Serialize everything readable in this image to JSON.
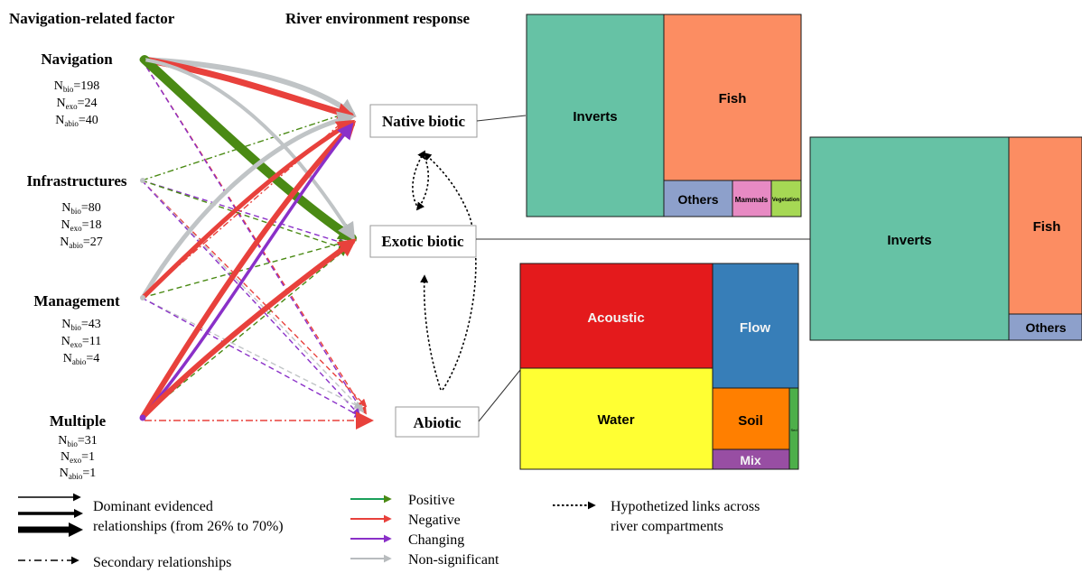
{
  "headers": {
    "left": "Navigation-related factor",
    "right": "River environment response"
  },
  "factors": [
    {
      "name": "Navigation",
      "n_bio": "198",
      "n_exo": "24",
      "n_abio": "40"
    },
    {
      "name": "Infrastructures",
      "n_bio": "80",
      "n_exo": "18",
      "n_abio": "27"
    },
    {
      "name": "Management",
      "n_bio": "43",
      "n_exo": "11",
      "n_abio": "4"
    },
    {
      "name": "Multiple",
      "n_bio": "31",
      "n_exo": "1",
      "n_abio": "1"
    }
  ],
  "n_labels": {
    "prefix": "N",
    "bio": "bio",
    "exo": "exo",
    "abio": "abio"
  },
  "responses": [
    {
      "name": "Native biotic"
    },
    {
      "name": "Exotic biotic"
    },
    {
      "name": "Abiotic"
    }
  ],
  "colors": {
    "positive": "#4a8a14",
    "negative": "#e8413c",
    "changing": "#8a30c8",
    "nonsig": "#c0c4c6",
    "inverts": "#66c2a5",
    "fish": "#fc8d62",
    "others": "#8da0cb",
    "mammals": "#e78ac3",
    "vegetation": "#a6d854",
    "acoustic": "#e41a1c",
    "water": "#ffff33",
    "flow": "#377eb8",
    "soil": "#ff7f00",
    "mix": "#984ea3",
    "small": "#4daf4a"
  },
  "treemaps": {
    "native": {
      "inverts": "Inverts",
      "fish": "Fish",
      "others": "Others",
      "mammals": "Mammals",
      "vegetation": "Vegetation"
    },
    "exotic": {
      "inverts": "Inverts",
      "fish": "Fish",
      "others": "Others"
    },
    "abiotic": {
      "acoustic": "Acoustic",
      "water": "Water",
      "flow": "Flow",
      "soil": "Soil",
      "mix": "Mix",
      "small": "Sed"
    }
  },
  "legend": {
    "dominant": "Dominant evidenced",
    "dominant_2": "relationships (from 26% to 70%)",
    "secondary": "Secondary relationships",
    "positive": "Positive",
    "negative": "Negative",
    "changing": "Changing",
    "nonsig": "Non-significant",
    "hypothesized": "Hypothetized links across",
    "hypothesized_2": "river compartments"
  }
}
